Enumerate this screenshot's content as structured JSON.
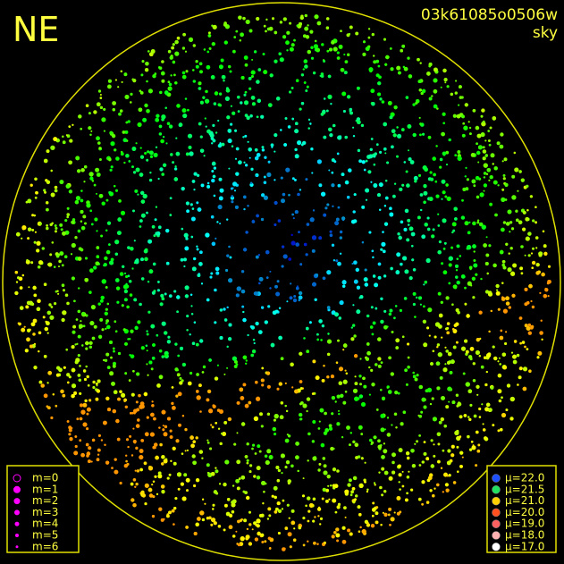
{
  "header": {
    "direction": "NE",
    "image_id": "03k61085o0506w",
    "mode": "sky"
  },
  "magnitude_legend": [
    {
      "label": "m=0"
    },
    {
      "label": "m=1"
    },
    {
      "label": "m=2"
    },
    {
      "label": "m=3"
    },
    {
      "label": "m=4"
    },
    {
      "label": "m=5"
    },
    {
      "label": "m=6"
    }
  ],
  "brightness_legend": [
    {
      "label": "μ=22.0",
      "color": "#1e50ff"
    },
    {
      "label": "μ=21.5",
      "color": "#22e060"
    },
    {
      "label": "μ=21.0",
      "color": "#ffd000"
    },
    {
      "label": "μ=20.0",
      "color": "#ff5020"
    },
    {
      "label": "μ=19.0",
      "color": "#ff6060"
    },
    {
      "label": "μ=18.0",
      "color": "#ffb0b0"
    },
    {
      "label": "μ=17.0",
      "color": "#ffffff"
    }
  ]
}
